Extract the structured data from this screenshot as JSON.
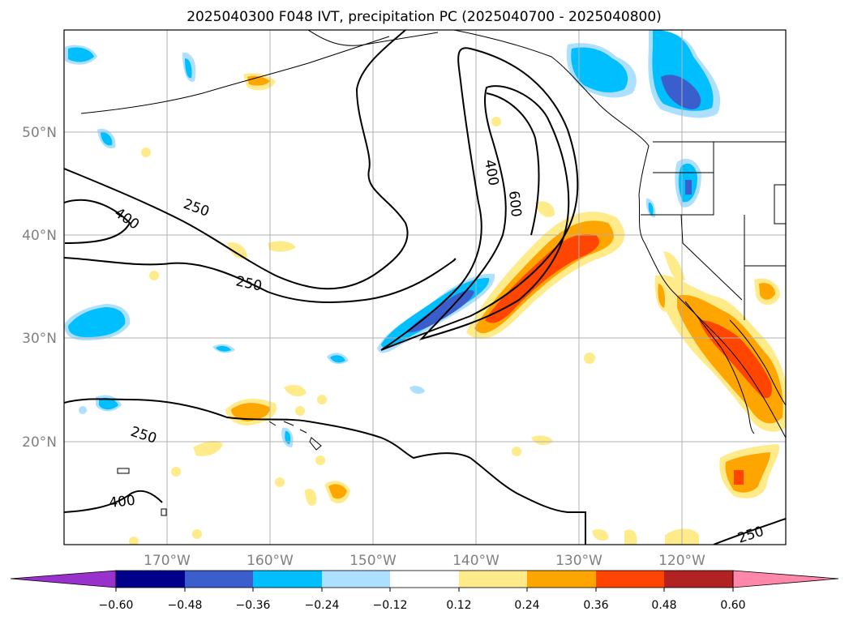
{
  "title": "2025040300 F048 IVT, precipitation PC (2025040700 - 2025040800)",
  "lon_labels": [
    "170°W",
    "160°W",
    "150°W",
    "140°W",
    "130°W",
    "120°W"
  ],
  "lat_labels": [
    "50°N",
    "40°N",
    "30°N",
    "20°N"
  ],
  "ivt_contour_labels": [
    "250",
    "400",
    "250",
    "250",
    "400",
    "400",
    "600",
    "250"
  ],
  "colorbar": {
    "ticks": [
      "−0.60",
      "−0.48",
      "−0.36",
      "−0.24",
      "−0.12",
      "0.12",
      "0.24",
      "0.36",
      "0.48",
      "0.60"
    ],
    "colors": [
      "#9932CC",
      "#00008B",
      "#3A5FCD",
      "#00BFFF",
      "#ADDFFF",
      "#FFFFFF",
      "#FFEB8A",
      "#FFA500",
      "#FF4500",
      "#B22222",
      "#FF88AA"
    ]
  },
  "fill_colors": {
    "light_blue": "#ADDFFF",
    "blue": "#00BFFF",
    "royal_blue": "#3A5FCD",
    "light_yellow": "#FFEB8A",
    "orange": "#FFA500",
    "orange_red": "#FF4500"
  }
}
